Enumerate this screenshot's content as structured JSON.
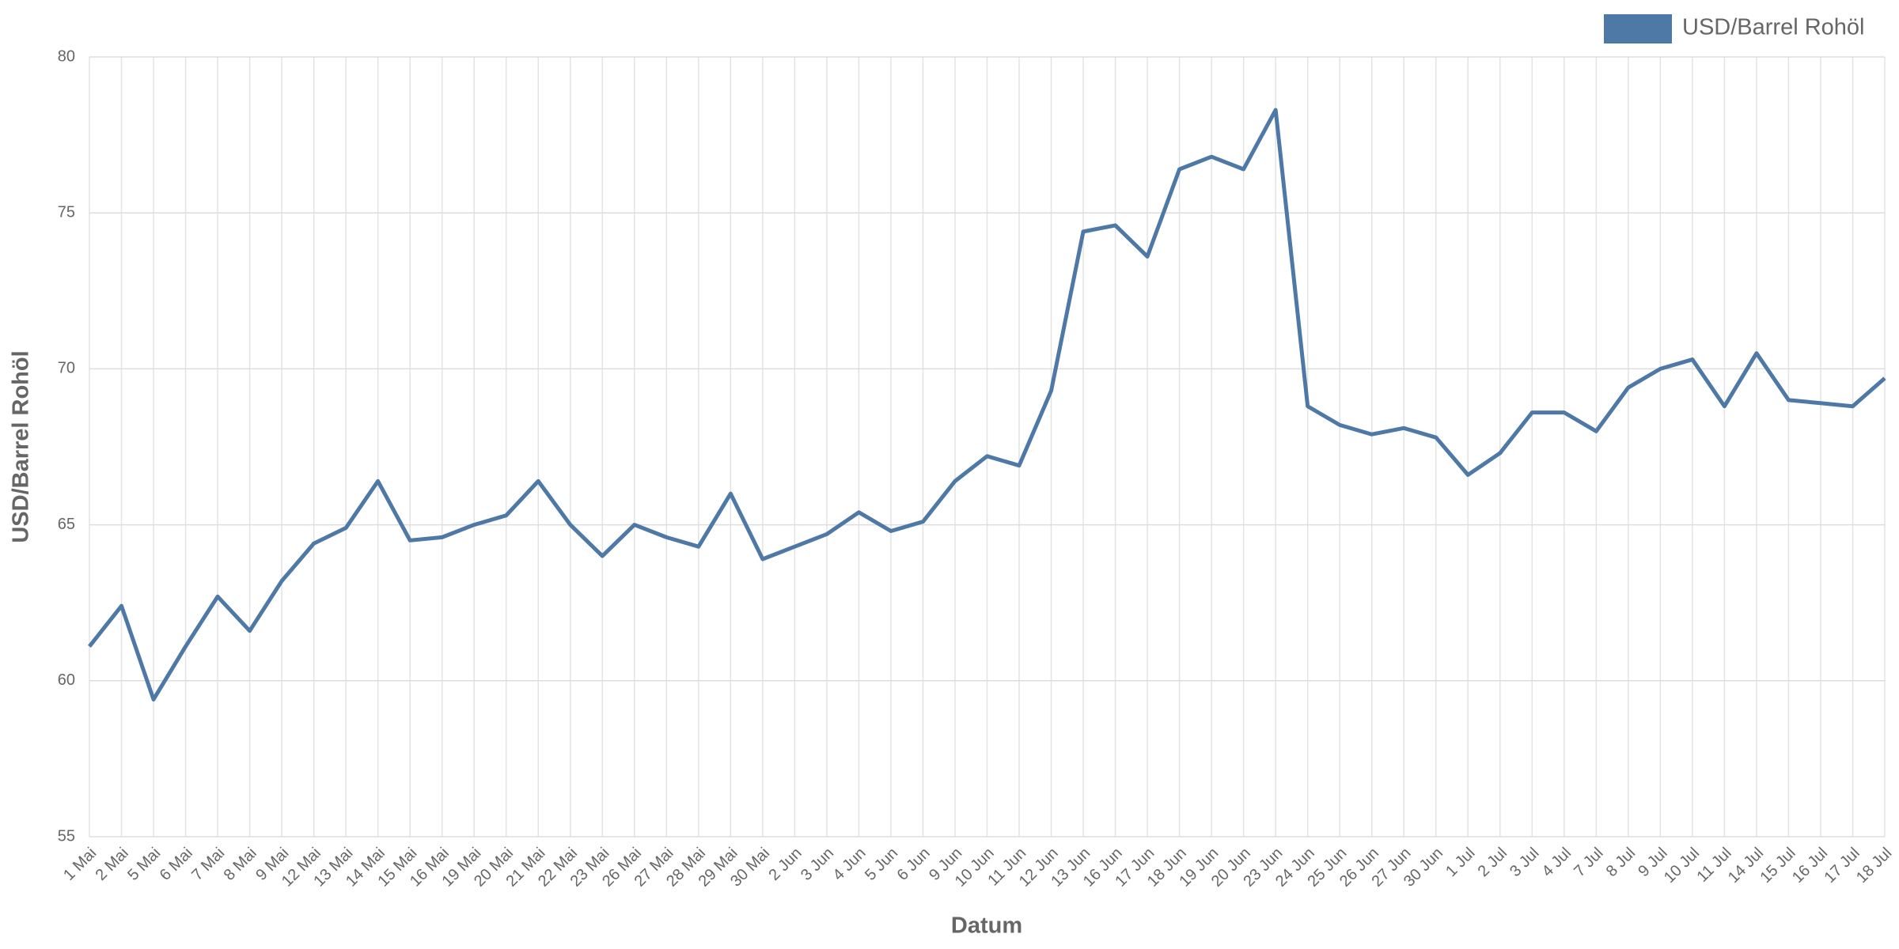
{
  "chart_data": {
    "type": "line",
    "x_label": "Datum",
    "y_label": "USD/Barrel Rohöl",
    "categories": [
      "1 Mai",
      "2 Mai",
      "5 Mai",
      "6 Mai",
      "7 Mai",
      "8 Mai",
      "9 Mai",
      "12 Mai",
      "13 Mai",
      "14 Mai",
      "15 Mai",
      "16 Mai",
      "19 Mai",
      "20 Mai",
      "21 Mai",
      "22 Mai",
      "23 Mai",
      "26 Mai",
      "27 Mai",
      "28 Mai",
      "29 Mai",
      "30 Mai",
      "2 Jun",
      "3 Jun",
      "4 Jun",
      "5 Jun",
      "6 Jun",
      "9 Jun",
      "10 Jun",
      "11 Jun",
      "12 Jun",
      "13 Jun",
      "16 Jun",
      "17 Jun",
      "18 Jun",
      "19 Jun",
      "20 Jun",
      "23 Jun",
      "24 Jun",
      "25 Jun",
      "26 Jun",
      "27 Jun",
      "30 Jun",
      "1 Jul",
      "2 Jul",
      "3 Jul",
      "4 Jul",
      "7 Jul",
      "8 Jul",
      "9 Jul",
      "10 Jul",
      "11 Jul",
      "14 Jul",
      "15 Jul",
      "16 Jul",
      "17 Jul",
      "18 Jul"
    ],
    "series": [
      {
        "name": "USD/Barrel Rohöl",
        "color": "#4e79a7",
        "values": [
          61.1,
          62.4,
          59.4,
          61.1,
          62.7,
          61.6,
          63.2,
          64.4,
          64.9,
          66.4,
          64.5,
          64.6,
          65.0,
          65.3,
          66.4,
          65.0,
          64.0,
          65.0,
          64.6,
          64.3,
          66.0,
          63.9,
          64.3,
          64.7,
          65.4,
          64.8,
          65.1,
          66.4,
          67.2,
          66.9,
          69.3,
          74.4,
          74.6,
          73.6,
          76.4,
          76.8,
          76.4,
          78.3,
          68.8,
          68.2,
          67.9,
          68.1,
          67.8,
          66.6,
          67.3,
          68.6,
          68.6,
          68.0,
          69.4,
          70.0,
          70.3,
          68.8,
          70.5,
          69.0,
          68.9,
          68.8,
          69.7
        ]
      }
    ],
    "ylim": [
      55,
      80
    ],
    "yticks": [
      55,
      60,
      65,
      70,
      75,
      80
    ],
    "grid": true,
    "legend": "top-right"
  }
}
